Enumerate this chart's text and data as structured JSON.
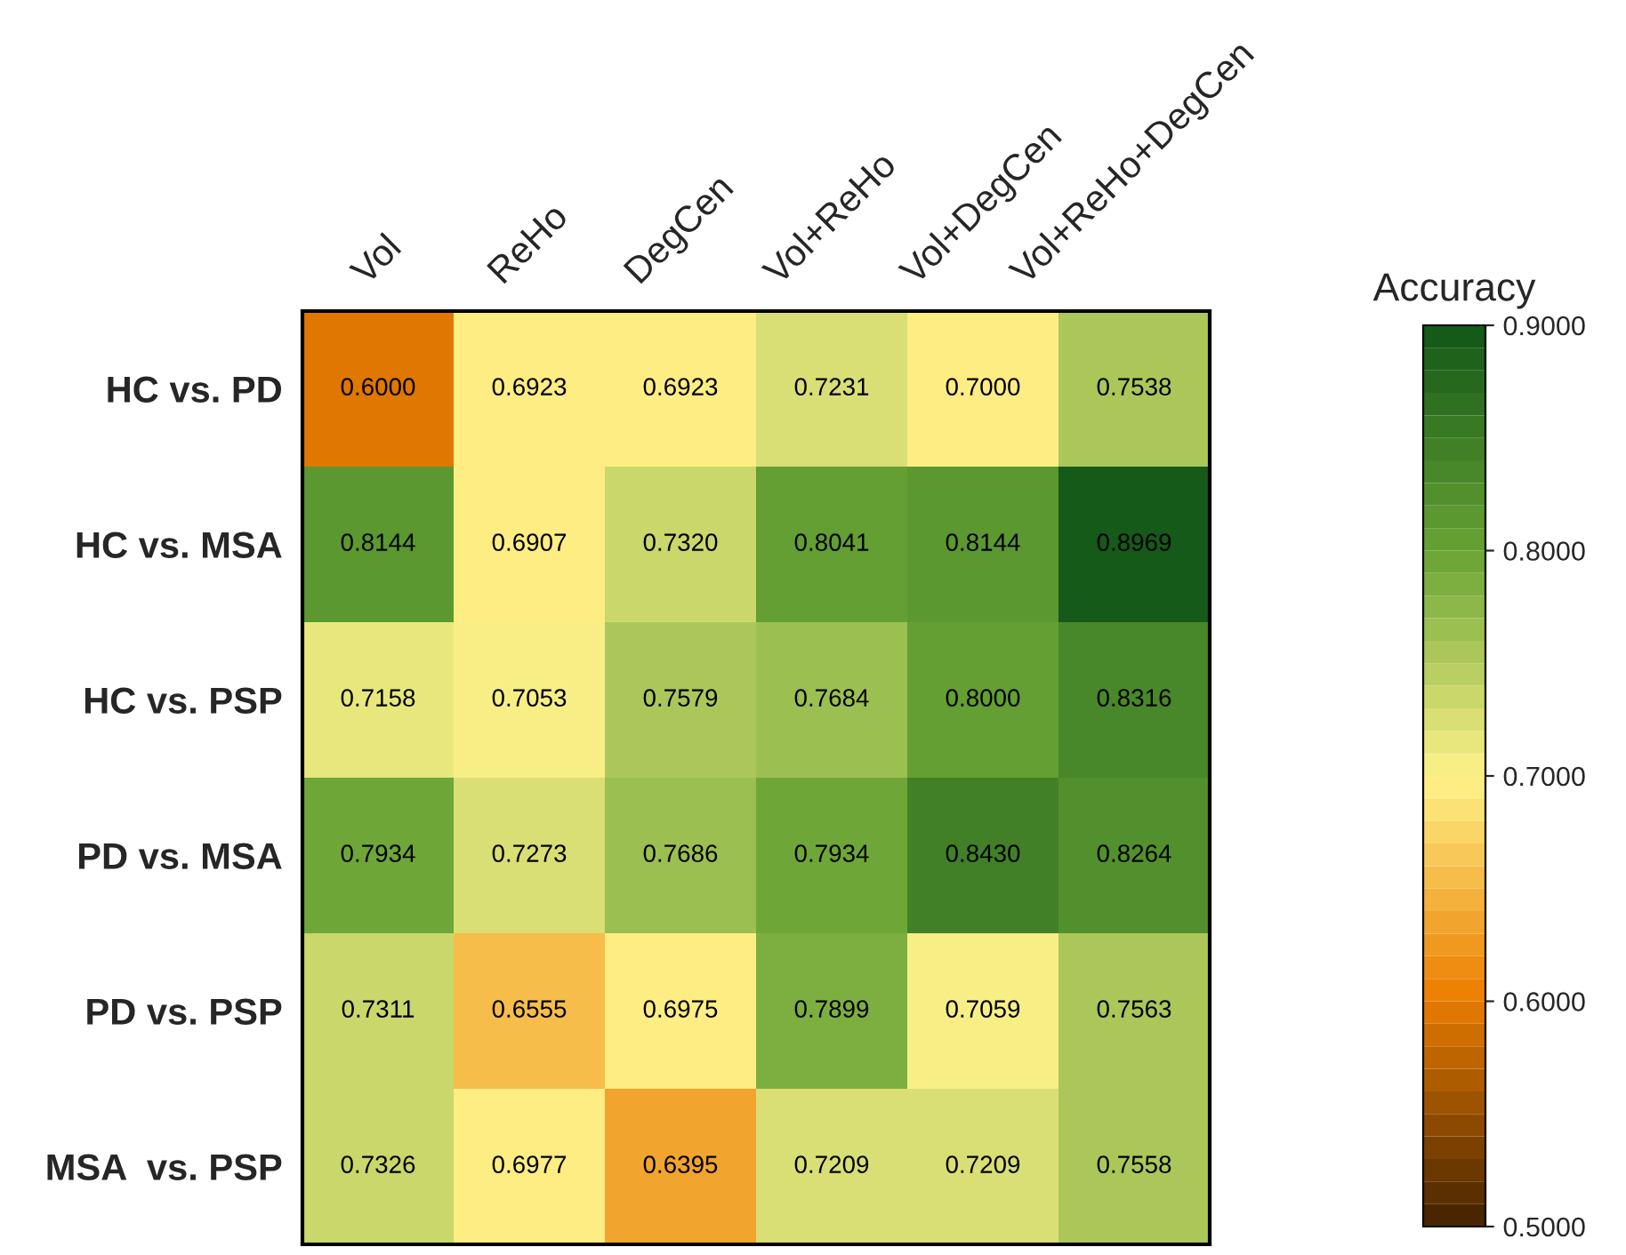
{
  "chart_data": {
    "type": "heatmap",
    "clabel": "Accuracy",
    "categories": [
      "Vol",
      "ReHo",
      "DegCen",
      "Vol+ReHo",
      "Vol+DegCen",
      "Vol+ReHo+DegCen"
    ],
    "y_categories": [
      "HC vs. PD",
      "HC vs. MSA",
      "HC vs. PSP",
      "PD vs. MSA",
      "PD vs. PSP",
      "MSA  vs. PSP"
    ],
    "cells": [
      [
        0.6,
        0.6923,
        0.6923,
        0.7231,
        0.7,
        0.7538
      ],
      [
        0.8144,
        0.6907,
        0.732,
        0.8041,
        0.8144,
        0.8969
      ],
      [
        0.7158,
        0.7053,
        0.7579,
        0.7684,
        0.8,
        0.8316
      ],
      [
        0.7934,
        0.7273,
        0.7686,
        0.7934,
        0.843,
        0.8264
      ],
      [
        0.7311,
        0.6555,
        0.6975,
        0.7899,
        0.7059,
        0.7563
      ],
      [
        0.7326,
        0.6977,
        0.6395,
        0.7209,
        0.7209,
        0.7558
      ]
    ],
    "cell_labels": [
      [
        "0.6000",
        "0.6923",
        "0.6923",
        "0.7231",
        "0.7000",
        "0.7538"
      ],
      [
        "0.8144",
        "0.6907",
        "0.7320",
        "0.8041",
        "0.8144",
        "0.8969"
      ],
      [
        "0.7158",
        "0.7053",
        "0.7579",
        "0.7684",
        "0.8000",
        "0.8316"
      ],
      [
        "0.7934",
        "0.7273",
        "0.7686",
        "0.7934",
        "0.8430",
        "0.8264"
      ],
      [
        "0.7311",
        "0.6555",
        "0.6975",
        "0.7899",
        "0.7059",
        "0.7563"
      ],
      [
        "0.7326",
        "0.6977",
        "0.6395",
        "0.7209",
        "0.7209",
        "0.7558"
      ]
    ],
    "clim": [
      0.5,
      0.9
    ],
    "cticks": [
      {
        "value": 0.5,
        "label": "0.5000"
      },
      {
        "value": 0.6,
        "label": "0.6000"
      },
      {
        "value": 0.7,
        "label": "0.7000"
      },
      {
        "value": 0.8,
        "label": "0.8000"
      },
      {
        "value": 0.9,
        "label": "0.9000"
      }
    ]
  }
}
